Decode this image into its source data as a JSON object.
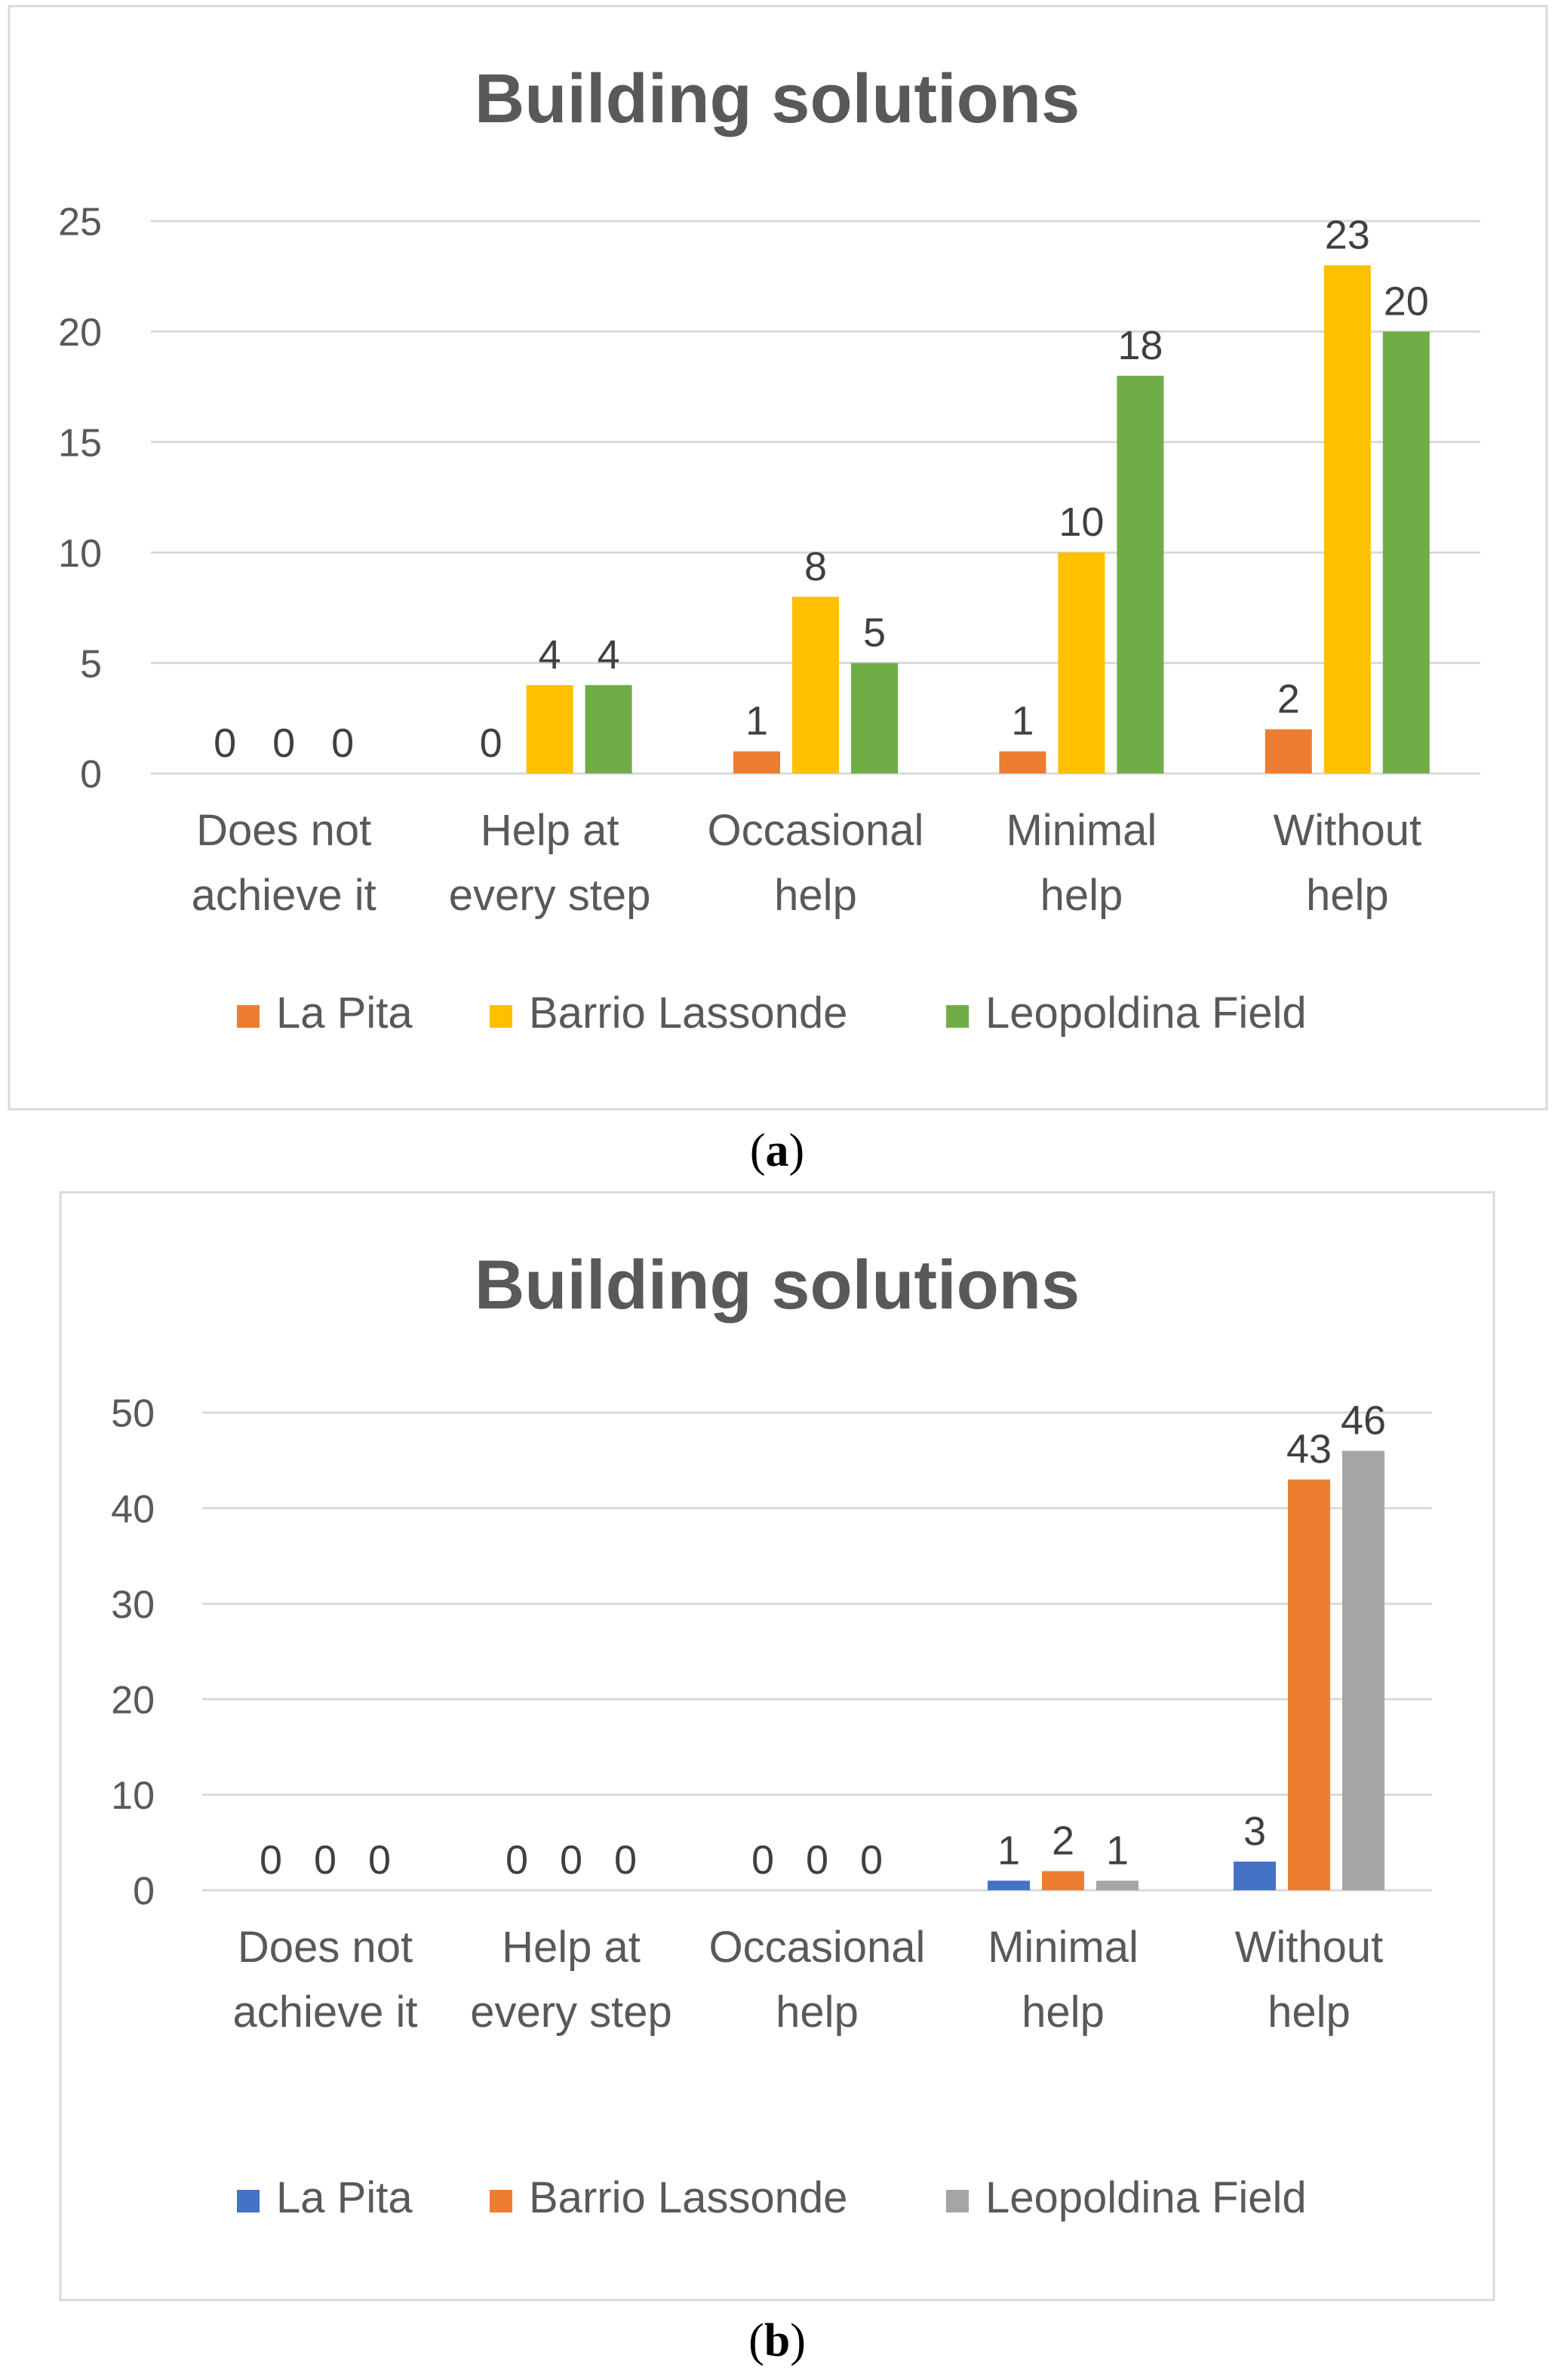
{
  "chart_data": [
    {
      "type": "bar",
      "title": "Building solutions",
      "categories": [
        [
          "Does not",
          "achieve it"
        ],
        [
          "Help at",
          "every step"
        ],
        [
          "Occasional",
          "help"
        ],
        [
          "Minimal",
          "help"
        ],
        [
          "Without",
          "help"
        ]
      ],
      "series": [
        {
          "name": "La Pita",
          "color": "#ED7D31",
          "values": [
            0,
            0,
            1,
            1,
            2
          ]
        },
        {
          "name": "Barrio Lassonde",
          "color": "#FFC000",
          "values": [
            0,
            4,
            8,
            10,
            23
          ]
        },
        {
          "name": "Leopoldina Field",
          "color": "#70AD47",
          "values": [
            0,
            4,
            5,
            18,
            20
          ]
        }
      ],
      "ylim": [
        0,
        25
      ],
      "yticks": [
        "0",
        "5",
        "10",
        "15",
        "20",
        "25"
      ],
      "grid": true,
      "legend": "bottom",
      "caption_letter": "a"
    },
    {
      "type": "bar",
      "title": "Building solutions",
      "categories": [
        [
          "Does not",
          "achieve it"
        ],
        [
          "Help at",
          "every step"
        ],
        [
          "Occasional",
          "help"
        ],
        [
          "Minimal",
          "help"
        ],
        [
          "Without",
          "help"
        ]
      ],
      "series": [
        {
          "name": "La Pita",
          "color": "#4472C4",
          "values": [
            0,
            0,
            0,
            1,
            3
          ]
        },
        {
          "name": "Barrio Lassonde",
          "color": "#ED7D31",
          "values": [
            0,
            0,
            0,
            2,
            43
          ]
        },
        {
          "name": "Leopoldina Field",
          "color": "#A5A5A5",
          "values": [
            0,
            0,
            0,
            1,
            46
          ]
        }
      ],
      "ylim": [
        0,
        50
      ],
      "yticks": [
        "0",
        "10",
        "20",
        "30",
        "40",
        "50"
      ],
      "grid": true,
      "legend": "bottom",
      "caption_letter": "b"
    }
  ]
}
